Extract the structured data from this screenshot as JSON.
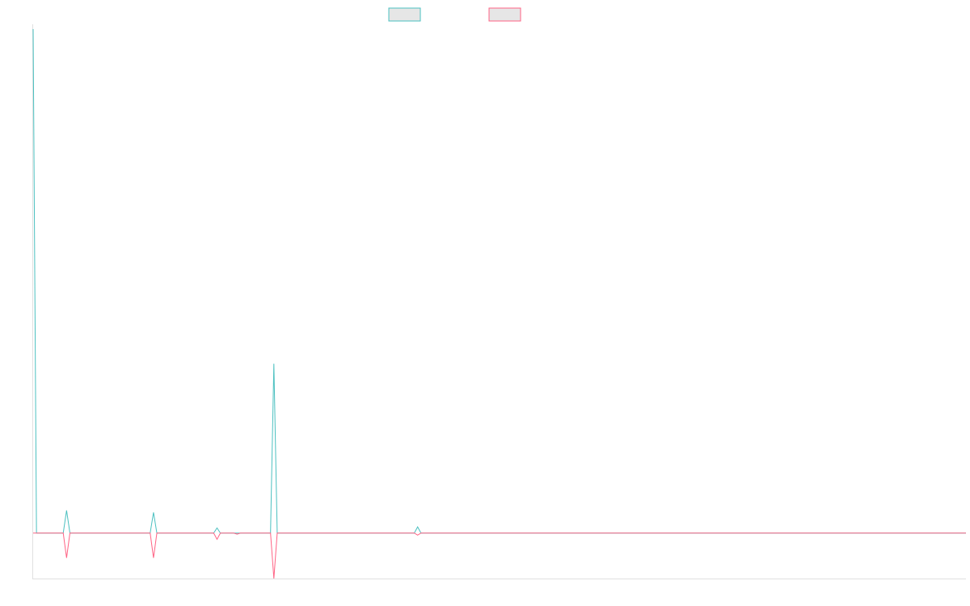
{
  "chart_data": {
    "type": "line",
    "x_count": 280,
    "ylim": [
      -2.2,
      24.4
    ],
    "grid": false,
    "legend_position": "top-center",
    "colors": {
      "series_1": "#4bc0c0",
      "series_2": "#ff6384",
      "axis": "#e0e0e0",
      "legend_fill": "#e6e6e6"
    },
    "series": [
      {
        "color_key": "series_1",
        "points": [
          [
            0,
            24.4
          ],
          [
            1,
            0
          ],
          [
            9,
            0
          ],
          [
            10,
            1.1
          ],
          [
            11,
            0
          ],
          [
            35,
            0
          ],
          [
            36,
            1.0
          ],
          [
            37,
            0
          ],
          [
            54,
            0
          ],
          [
            55,
            0.25
          ],
          [
            56,
            0
          ],
          [
            71,
            0
          ],
          [
            72,
            8.2
          ],
          [
            73,
            0
          ],
          [
            114,
            0
          ],
          [
            115,
            0.3
          ],
          [
            116,
            0
          ],
          [
            279,
            0
          ]
        ]
      },
      {
        "color_key": "series_2",
        "points": [
          [
            0,
            0
          ],
          [
            9,
            0
          ],
          [
            10,
            -1.2
          ],
          [
            11,
            0
          ],
          [
            35,
            0
          ],
          [
            36,
            -1.2
          ],
          [
            37,
            0
          ],
          [
            54,
            0
          ],
          [
            55,
            -0.3
          ],
          [
            56,
            0
          ],
          [
            60,
            0
          ],
          [
            61,
            -0.05
          ],
          [
            62,
            0
          ],
          [
            71,
            0
          ],
          [
            72,
            -2.2
          ],
          [
            73,
            0
          ],
          [
            114,
            0
          ],
          [
            115,
            -0.1
          ],
          [
            116,
            0
          ],
          [
            279,
            0
          ]
        ]
      }
    ]
  }
}
